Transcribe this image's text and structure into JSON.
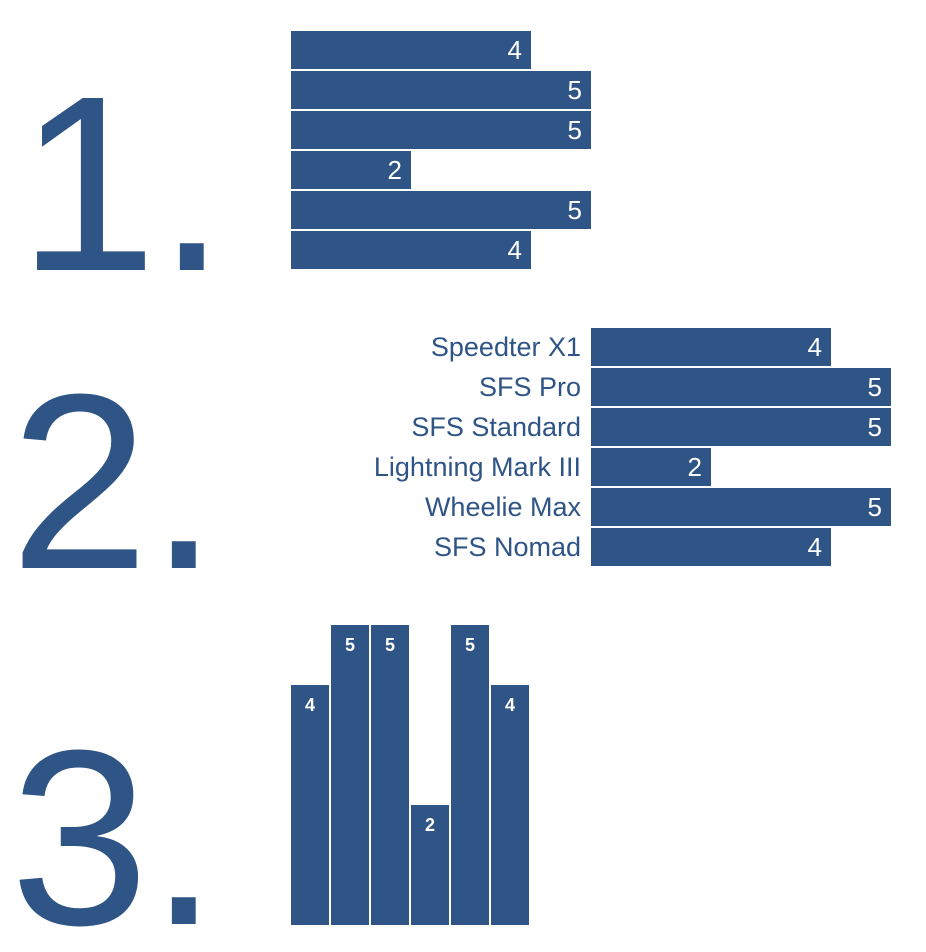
{
  "colors": {
    "bar": "#2f5486",
    "bar_text": "#ffffff",
    "label": "#2f5486",
    "numeral": "#2f5486"
  },
  "panels": [
    {
      "numeral": "1."
    },
    {
      "numeral": "2."
    },
    {
      "numeral": "3."
    }
  ],
  "chart_data": [
    {
      "type": "bar",
      "orientation": "horizontal",
      "values": [
        4,
        5,
        5,
        2,
        5,
        4
      ],
      "data_labels": [
        "4",
        "5",
        "5",
        "2",
        "5",
        "4"
      ],
      "category_labels_shown": false,
      "xlim": [
        0,
        5
      ]
    },
    {
      "type": "bar",
      "orientation": "horizontal",
      "categories": [
        "Speedter X1",
        "SFS Pro",
        "SFS Standard",
        "Lightning Mark III",
        "Wheelie Max",
        "SFS Nomad"
      ],
      "values": [
        4,
        5,
        5,
        2,
        5,
        4
      ],
      "data_labels": [
        "4",
        "5",
        "5",
        "2",
        "5",
        "4"
      ],
      "category_labels_shown": true,
      "xlim": [
        0,
        5
      ]
    },
    {
      "type": "bar",
      "orientation": "vertical",
      "values": [
        4,
        5,
        5,
        2,
        5,
        4
      ],
      "data_labels": [
        "4",
        "5",
        "5",
        "2",
        "5",
        "4"
      ],
      "category_labels_shown": false,
      "ylim": [
        0,
        5
      ]
    }
  ]
}
